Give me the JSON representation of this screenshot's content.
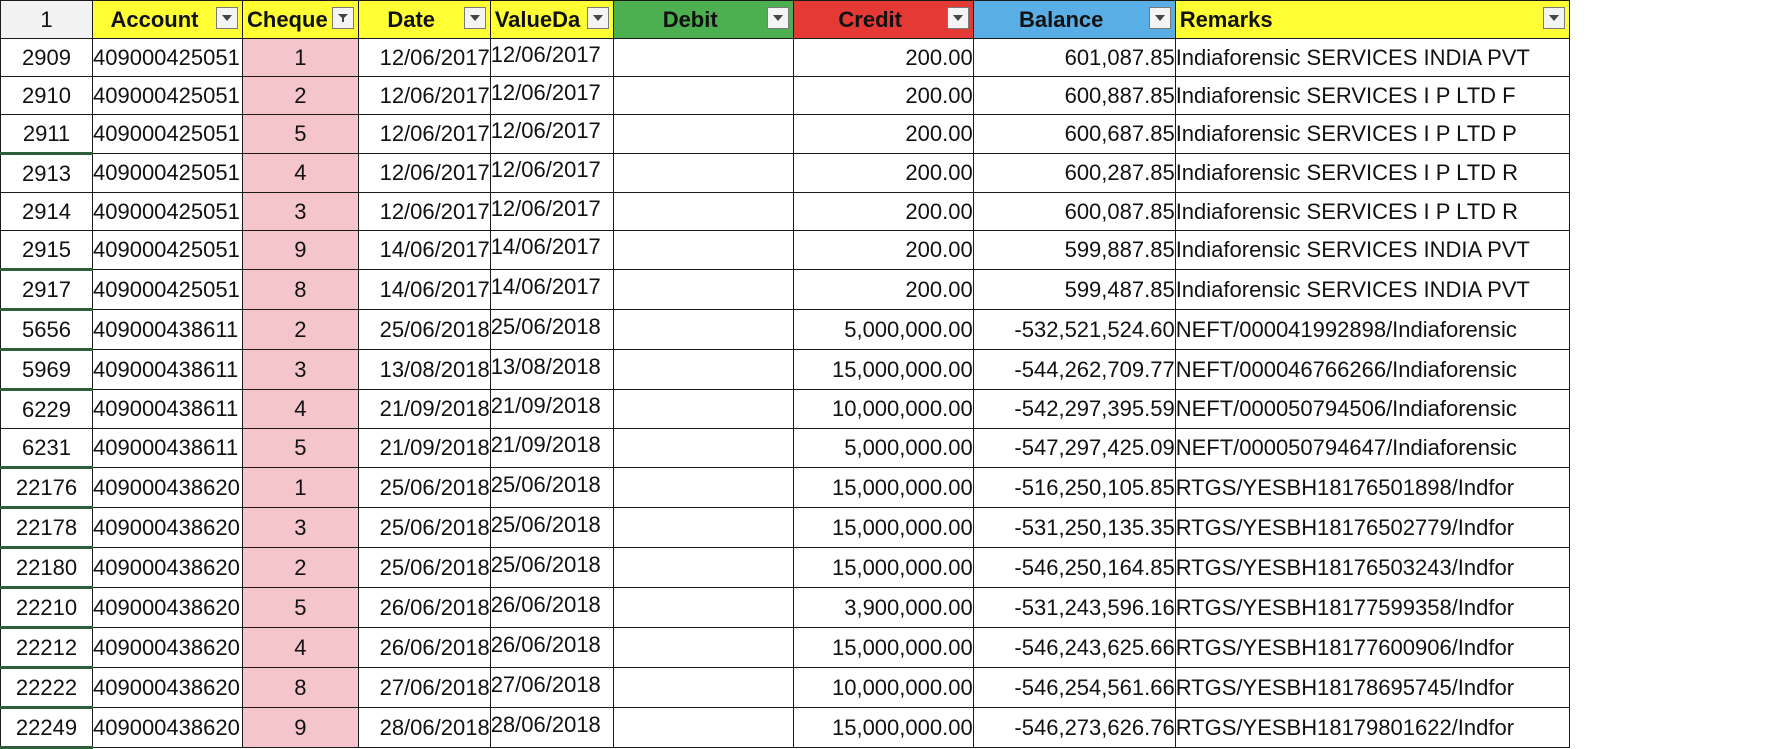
{
  "sheet": {
    "corner_label": "1",
    "headers": {
      "account": "Account",
      "cheque": "Cheque",
      "date": "Date",
      "value_date": "ValueDa",
      "debit": "Debit",
      "credit": "Credit",
      "balance": "Balance",
      "remarks": "Remarks"
    },
    "header_colors": {
      "account": "#ffff33",
      "cheque": "#ffff33",
      "date": "#ffff33",
      "value_date": "#ffff33",
      "debit": "#4caf50",
      "credit": "#e53935",
      "balance": "#5aaee6",
      "remarks": "#ffff33"
    },
    "cheque_cell_color": "#f4c6cb",
    "row_number_color": "#1a2ee0",
    "rows": [
      {
        "row": "2909",
        "account": "409000425051",
        "cheque": "1",
        "date": "12/06/2017",
        "value_date": "12/06/2017",
        "debit": "",
        "credit": "200.00",
        "balance": "601,087.85",
        "remarks": "Indiaforensic SERVICES INDIA PVT"
      },
      {
        "row": "2910",
        "account": "409000425051",
        "cheque": "2",
        "date": "12/06/2017",
        "value_date": "12/06/2017",
        "debit": "",
        "credit": "200.00",
        "balance": "600,887.85",
        "remarks": "Indiaforensic SERVICES I P LTD F"
      },
      {
        "row": "2911",
        "account": "409000425051",
        "cheque": "5",
        "date": "12/06/2017",
        "value_date": "12/06/2017",
        "debit": "",
        "credit": "200.00",
        "balance": "600,687.85",
        "remarks": "Indiaforensic SERVICES I P LTD P"
      },
      {
        "row": "2913",
        "account": "409000425051",
        "cheque": "4",
        "date": "12/06/2017",
        "value_date": "12/06/2017",
        "debit": "",
        "credit": "200.00",
        "balance": "600,287.85",
        "remarks": "Indiaforensic SERVICES I P LTD R"
      },
      {
        "row": "2914",
        "account": "409000425051",
        "cheque": "3",
        "date": "12/06/2017",
        "value_date": "12/06/2017",
        "debit": "",
        "credit": "200.00",
        "balance": "600,087.85",
        "remarks": "Indiaforensic SERVICES I P LTD R"
      },
      {
        "row": "2915",
        "account": "409000425051",
        "cheque": "9",
        "date": "14/06/2017",
        "value_date": "14/06/2017",
        "debit": "",
        "credit": "200.00",
        "balance": "599,887.85",
        "remarks": "Indiaforensic SERVICES INDIA PVT"
      },
      {
        "row": "2917",
        "account": "409000425051",
        "cheque": "8",
        "date": "14/06/2017",
        "value_date": "14/06/2017",
        "debit": "",
        "credit": "200.00",
        "balance": "599,487.85",
        "remarks": "Indiaforensic SERVICES INDIA PVT"
      },
      {
        "row": "5656",
        "account": "409000438611",
        "cheque": "2",
        "date": "25/06/2018",
        "value_date": "25/06/2018",
        "debit": "",
        "credit": "5,000,000.00",
        "balance": "-532,521,524.60",
        "remarks": "NEFT/000041992898/Indiaforensic"
      },
      {
        "row": "5969",
        "account": "409000438611",
        "cheque": "3",
        "date": "13/08/2018",
        "value_date": "13/08/2018",
        "debit": "",
        "credit": "15,000,000.00",
        "balance": "-544,262,709.77",
        "remarks": "NEFT/000046766266/Indiaforensic"
      },
      {
        "row": "6229",
        "account": "409000438611",
        "cheque": "4",
        "date": "21/09/2018",
        "value_date": "21/09/2018",
        "debit": "",
        "credit": "10,000,000.00",
        "balance": "-542,297,395.59",
        "remarks": "NEFT/000050794506/Indiaforensic"
      },
      {
        "row": "6231",
        "account": "409000438611",
        "cheque": "5",
        "date": "21/09/2018",
        "value_date": "21/09/2018",
        "debit": "",
        "credit": "5,000,000.00",
        "balance": "-547,297,425.09",
        "remarks": "NEFT/000050794647/Indiaforensic"
      },
      {
        "row": "22176",
        "account": "409000438620",
        "cheque": "1",
        "date": "25/06/2018",
        "value_date": "25/06/2018",
        "debit": "",
        "credit": "15,000,000.00",
        "balance": "-516,250,105.85",
        "remarks": "RTGS/YESBH18176501898/Indfor"
      },
      {
        "row": "22178",
        "account": "409000438620",
        "cheque": "3",
        "date": "25/06/2018",
        "value_date": "25/06/2018",
        "debit": "",
        "credit": "15,000,000.00",
        "balance": "-531,250,135.35",
        "remarks": "RTGS/YESBH18176502779/Indfor"
      },
      {
        "row": "22180",
        "account": "409000438620",
        "cheque": "2",
        "date": "25/06/2018",
        "value_date": "25/06/2018",
        "debit": "",
        "credit": "15,000,000.00",
        "balance": "-546,250,164.85",
        "remarks": "RTGS/YESBH18176503243/Indfor"
      },
      {
        "row": "22210",
        "account": "409000438620",
        "cheque": "5",
        "date": "26/06/2018",
        "value_date": "26/06/2018",
        "debit": "",
        "credit": "3,900,000.00",
        "balance": "-531,243,596.16",
        "remarks": "RTGS/YESBH18177599358/Indfor"
      },
      {
        "row": "22212",
        "account": "409000438620",
        "cheque": "4",
        "date": "26/06/2018",
        "value_date": "26/06/2018",
        "debit": "",
        "credit": "15,000,000.00",
        "balance": "-546,243,625.66",
        "remarks": "RTGS/YESBH18177600906/Indfor"
      },
      {
        "row": "22222",
        "account": "409000438620",
        "cheque": "8",
        "date": "27/06/2018",
        "value_date": "27/06/2018",
        "debit": "",
        "credit": "10,000,000.00",
        "balance": "-546,254,561.66",
        "remarks": "RTGS/YESBH18178695745/Indfor"
      },
      {
        "row": "22249",
        "account": "409000438620",
        "cheque": "9",
        "date": "28/06/2018",
        "value_date": "28/06/2018",
        "debit": "",
        "credit": "15,000,000.00",
        "balance": "-546,273,626.76",
        "remarks": "RTGS/YESBH18179801622/Indfor"
      }
    ]
  }
}
